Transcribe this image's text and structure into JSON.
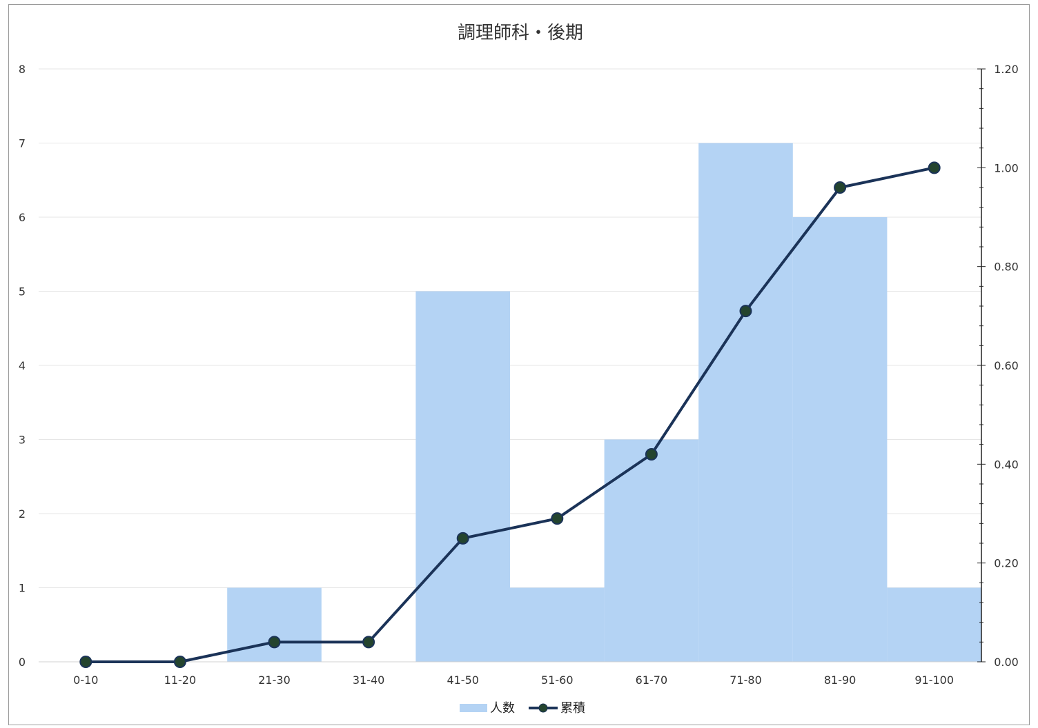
{
  "chart_data": {
    "type": "bar",
    "title": "調理師科・後期",
    "categories": [
      "0-10",
      "11-20",
      "21-30",
      "31-40",
      "41-50",
      "51-60",
      "61-70",
      "71-80",
      "81-90",
      "91-100"
    ],
    "series": [
      {
        "name": "人数",
        "type": "bar",
        "axis": "left",
        "values": [
          0,
          0,
          1,
          0,
          5,
          1,
          3,
          7,
          6,
          1
        ]
      },
      {
        "name": "累積",
        "type": "line",
        "axis": "right",
        "values": [
          0,
          0,
          0.04,
          0.04,
          0.25,
          0.29,
          0.42,
          0.71,
          0.96,
          1.0
        ]
      }
    ],
    "y_left": {
      "range": [
        0,
        8
      ],
      "ticks": [
        "0",
        "1",
        "2",
        "3",
        "4",
        "5",
        "6",
        "7",
        "8"
      ]
    },
    "y_right": {
      "range": [
        0,
        1.2
      ],
      "ticks": [
        "0.00",
        "0.20",
        "0.40",
        "0.60",
        "0.80",
        "1.00",
        "1.20"
      ]
    },
    "grid": true,
    "legend": "bottom-center",
    "colors": {
      "bar": "#b4d3f4",
      "line": "#1b3358",
      "marker": "#24442e",
      "grid": "#e6e6e6"
    }
  }
}
